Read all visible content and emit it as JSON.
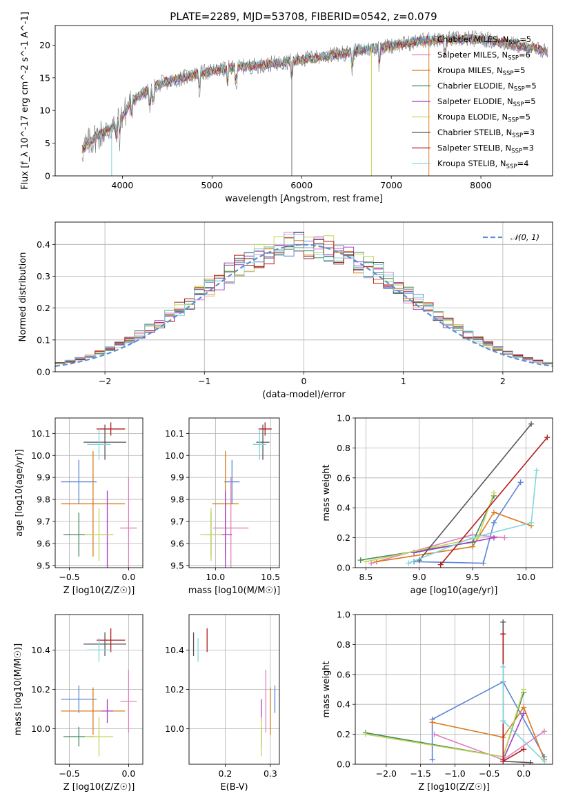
{
  "title": "PLATE=2289, MJD=53708, FIBERID=0542, z=0.079",
  "colors": {
    "Chabrier MILES": "#5b86d6",
    "Salpeter MILES": "#e07ec0",
    "Kroupa MILES": "#d97a1c",
    "Chabrier ELODIE": "#3f8a5a",
    "Salpeter ELODIE": "#a23ec4",
    "Kroupa ELODIE": "#c8d45a",
    "Chabrier STELIB": "#555555",
    "Salpeter STELIB": "#b41a1a",
    "Kroupa STELIB": "#7fd6dc",
    "normal": "#5b8fd6"
  },
  "legend_top": [
    "Chabrier MILES, N_SSP=5",
    "Salpeter MILES, N_SSP=6",
    "Kroupa MILES, N_SSP=5",
    "Chabrier ELODIE, N_SSP=5",
    "Salpeter ELODIE, N_SSP=5",
    "Kroupa ELODIE, N_SSP=5",
    "Chabrier STELIB, N_SSP=3",
    "Salpeter STELIB, N_SSP=3",
    "Kroupa STELIB, N_SSP=4"
  ],
  "legend_hist": "𝒩(0, 1)",
  "chart_data": [
    {
      "id": "spectrum",
      "type": "line",
      "xlabel": "wavelength [Angstrom, rest frame]",
      "ylabel": "Flux [f_λ 10^-17 erg cm^-2 s^-1 A^-1]",
      "xlim": [
        3250,
        8800
      ],
      "ylim": [
        0,
        23
      ],
      "xticks": [
        4000,
        5000,
        6000,
        7000,
        8000
      ],
      "yticks": [
        0,
        5,
        10,
        15,
        20
      ],
      "continuum": [
        [
          3550,
          4
        ],
        [
          3700,
          6
        ],
        [
          3900,
          7.5
        ],
        [
          4000,
          9
        ],
        [
          4100,
          11.5
        ],
        [
          4400,
          14
        ],
        [
          4800,
          15.5
        ],
        [
          5200,
          16.5
        ],
        [
          5600,
          17
        ],
        [
          6000,
          17.8
        ],
        [
          6400,
          18.6
        ],
        [
          6800,
          19.5
        ],
        [
          7200,
          20.3
        ],
        [
          7400,
          20.8
        ],
        [
          8000,
          21
        ],
        [
          8400,
          20
        ],
        [
          8750,
          19
        ]
      ],
      "grid": false
    },
    {
      "id": "histogram",
      "type": "line",
      "xlabel": "(data-model)/error",
      "ylabel": "Normed distribution",
      "xlim": [
        -2.5,
        2.5
      ],
      "ylim": [
        0,
        0.47
      ],
      "xticks": [
        -2,
        -1,
        0,
        1,
        2
      ],
      "yticks": [
        0.0,
        0.1,
        0.2,
        0.3,
        0.4
      ],
      "bin_width": 0.1,
      "grid": true
    },
    {
      "id": "age_vs_Z",
      "type": "scatter",
      "xlabel": "Z [log10(Z/Z☉)]",
      "ylabel": "age [log10(age/yr)]",
      "xlim": [
        -0.62,
        0.12
      ],
      "ylim": [
        9.49,
        10.17
      ],
      "xticks": [
        -0.5,
        0.0
      ],
      "yticks": [
        9.5,
        9.6,
        9.7,
        9.8,
        9.9,
        10.0,
        10.1
      ],
      "grid": true
    },
    {
      "id": "age_vs_mass",
      "type": "scatter",
      "xlabel": "mass [log10(M/M☉)]",
      "ylabel": "",
      "xlim": [
        9.76,
        10.58
      ],
      "ylim": [
        9.49,
        10.17
      ],
      "xticks": [
        10.0,
        10.5
      ],
      "yticks": [
        9.5,
        9.6,
        9.7,
        9.8,
        9.9,
        10.0,
        10.1
      ],
      "grid": true
    },
    {
      "id": "massweight_vs_age",
      "type": "line",
      "xlabel": "age [log10(age/yr)]",
      "ylabel": "mass weight",
      "xlim": [
        8.4,
        10.25
      ],
      "ylim": [
        0,
        1
      ],
      "xticks": [
        8.5,
        9.0,
        9.5,
        10.0
      ],
      "yticks": [
        0.0,
        0.2,
        0.4,
        0.6,
        0.8,
        1.0
      ],
      "grid": true
    },
    {
      "id": "mass_vs_Z",
      "type": "scatter",
      "xlabel": "Z [log10(Z/Z☉)]",
      "ylabel": "mass [log10(M/M☉)]",
      "xlim": [
        -0.62,
        0.12
      ],
      "ylim": [
        9.82,
        10.58
      ],
      "xticks": [
        -0.5,
        0.0
      ],
      "yticks": [
        10.0,
        10.2,
        10.4
      ],
      "grid": true
    },
    {
      "id": "mass_vs_EBV",
      "type": "scatter",
      "xlabel": "E(B-V)",
      "ylabel": "",
      "xlim": [
        0.12,
        0.32
      ],
      "ylim": [
        9.82,
        10.58
      ],
      "xticks": [
        0.2,
        0.3
      ],
      "yticks": [
        10.0,
        10.2,
        10.4
      ],
      "grid": true
    },
    {
      "id": "massweight_vs_Z",
      "type": "line",
      "xlabel": "Z [log10(Z/Z☉)]",
      "ylabel": "mass weight",
      "xlim": [
        -2.45,
        0.42
      ],
      "ylim": [
        0,
        1
      ],
      "xticks": [
        -2.0,
        -1.5,
        -1.0,
        -0.5,
        0.0
      ],
      "yticks": [
        0.0,
        0.2,
        0.4,
        0.6,
        0.8,
        1.0
      ],
      "grid": true
    }
  ],
  "fits": [
    {
      "name": "Chabrier MILES",
      "color": "#5b86d6",
      "Z": -0.42,
      "Zerr": 0.15,
      "age": 9.88,
      "ageerr": 0.1,
      "mass": 10.15,
      "masserr": 0.07,
      "ebv": 0.31,
      "ebverr": 0.11,
      "mw_age": [
        [
          8.95,
          0.04
        ],
        [
          9.6,
          0.03
        ],
        [
          9.7,
          0.3
        ],
        [
          9.95,
          0.57
        ]
      ],
      "mw_Z": [
        [
          -1.33,
          0.03
        ],
        [
          -1.33,
          0.3
        ],
        [
          -0.3,
          0.55
        ],
        [
          0.3,
          0.05
        ]
      ]
    },
    {
      "name": "Salpeter MILES",
      "color": "#e07ec0",
      "Z": 0.0,
      "Zerr": 0.07,
      "age": 9.67,
      "ageerr": 0.23,
      "mass": 10.14,
      "masserr": 0.16,
      "ebv": 0.29,
      "ebverr": 0.09,
      "mw_age": [
        [
          8.55,
          0.03
        ],
        [
          9.5,
          0.22
        ],
        [
          9.8,
          0.2
        ]
      ],
      "mw_Z": [
        [
          -1.3,
          0.2
        ],
        [
          -0.3,
          0.03
        ],
        [
          0.3,
          0.22
        ]
      ]
    },
    {
      "name": "Kroupa MILES",
      "color": "#d97a1c",
      "Z": -0.3,
      "Zerr": 0.27,
      "age": 9.78,
      "ageerr": 0.24,
      "mass": 10.09,
      "masserr": 0.12,
      "ebv": 0.3,
      "ebverr": 0.1,
      "mw_age": [
        [
          8.6,
          0.04
        ],
        [
          9.5,
          0.14
        ],
        [
          9.7,
          0.37
        ],
        [
          10.05,
          0.28
        ]
      ],
      "mw_Z": [
        [
          -1.33,
          0.28
        ],
        [
          -0.3,
          0.18
        ],
        [
          0.0,
          0.38
        ],
        [
          0.3,
          0.03
        ]
      ]
    },
    {
      "name": "Chabrier ELODIE",
      "color": "#3f8a5a",
      "Z": -0.42,
      "Zerr": 0.13,
      "age": 9.64,
      "ageerr": 0.1,
      "mass": 9.96,
      "masserr": 0.05,
      "ebv": 0.28,
      "ebverr": 0.07,
      "mw_age": [
        [
          8.45,
          0.05
        ],
        [
          9.5,
          0.17
        ],
        [
          9.7,
          0.48
        ]
      ],
      "mw_Z": [
        [
          -2.3,
          0.21
        ],
        [
          -0.3,
          0.05
        ],
        [
          0.0,
          0.48
        ]
      ]
    },
    {
      "name": "Salpeter ELODIE",
      "color": "#a23ec4",
      "Z": -0.18,
      "Zerr": 0.05,
      "age": 9.64,
      "ageerr": 0.2,
      "mass": 10.09,
      "masserr": 0.06,
      "ebv": 0.28,
      "ebverr": 0.07,
      "mw_age": [
        [
          8.95,
          0.1
        ],
        [
          9.7,
          0.2
        ]
      ],
      "mw_Z": [
        [
          -0.3,
          0.03
        ],
        [
          0.0,
          0.34
        ]
      ]
    },
    {
      "name": "Kroupa ELODIE",
      "color": "#c8d45a",
      "Z": -0.25,
      "Zerr": 0.12,
      "age": 9.64,
      "ageerr": 0.12,
      "mass": 9.96,
      "masserr": 0.1,
      "ebv": 0.28,
      "ebverr": 0.08,
      "mw_age": [
        [
          8.5,
          0.04
        ],
        [
          9.55,
          0.2
        ],
        [
          9.7,
          0.5
        ]
      ],
      "mw_Z": [
        [
          -2.3,
          0.2
        ],
        [
          -0.3,
          0.05
        ],
        [
          0.0,
          0.5
        ]
      ]
    },
    {
      "name": "Chabrier STELIB",
      "color": "#555555",
      "Z": -0.2,
      "Zerr": 0.18,
      "age": 10.06,
      "ageerr": 0.08,
      "mass": 10.43,
      "masserr": 0.06,
      "ebv": 0.13,
      "ebverr": 0.05,
      "mw_age": [
        [
          9.0,
          0.05
        ],
        [
          10.05,
          0.96
        ]
      ],
      "mw_Z": [
        [
          -0.3,
          0.95
        ],
        [
          -0.3,
          0.02
        ],
        [
          0.1,
          0.01
        ]
      ]
    },
    {
      "name": "Salpeter STELIB",
      "color": "#b41a1a",
      "Z": -0.15,
      "Zerr": 0.12,
      "age": 10.12,
      "ageerr": 0.03,
      "mass": 10.45,
      "masserr": 0.06,
      "ebv": 0.16,
      "ebverr": 0.04,
      "mw_age": [
        [
          9.2,
          0.02
        ],
        [
          10.2,
          0.87
        ]
      ],
      "mw_Z": [
        [
          -0.3,
          0.87
        ],
        [
          -0.3,
          0.02
        ],
        [
          0.0,
          0.1
        ]
      ]
    },
    {
      "name": "Kroupa STELIB",
      "color": "#7fd6dc",
      "Z": -0.25,
      "Zerr": 0.1,
      "age": 10.05,
      "ageerr": 0.07,
      "mass": 10.4,
      "masserr": 0.06,
      "ebv": 0.14,
      "ebverr": 0.05,
      "mw_age": [
        [
          8.9,
          0.03
        ],
        [
          9.5,
          0.2
        ],
        [
          10.05,
          0.3
        ],
        [
          10.1,
          0.65
        ]
      ],
      "mw_Z": [
        [
          -0.3,
          0.65
        ],
        [
          -0.3,
          0.29
        ],
        [
          0.3,
          0.02
        ]
      ]
    }
  ]
}
